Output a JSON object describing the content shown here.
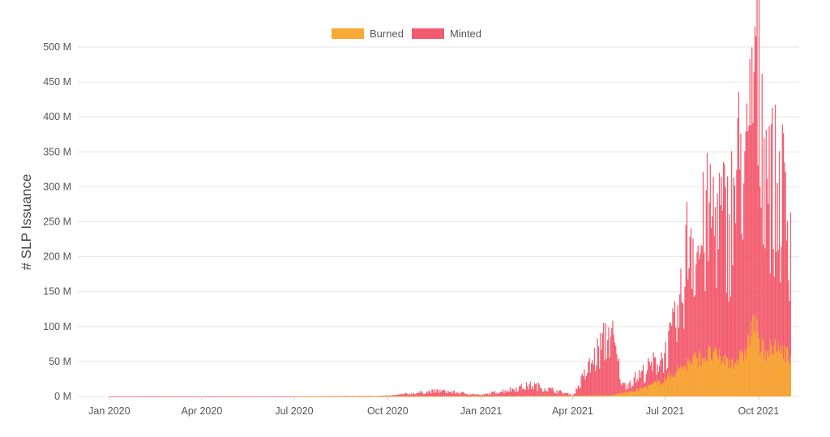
{
  "chart_data": {
    "type": "bar",
    "stacked": true,
    "ylabel": "# SLP Issuance",
    "ylim": [
      0,
      500000000
    ],
    "yticks": [
      {
        "value": 0,
        "label": "0 M"
      },
      {
        "value": 50000000,
        "label": "50 M"
      },
      {
        "value": 100000000,
        "label": "100 M"
      },
      {
        "value": 150000000,
        "label": "150 M"
      },
      {
        "value": 200000000,
        "label": "200 M"
      },
      {
        "value": 250000000,
        "label": "250 M"
      },
      {
        "value": 300000000,
        "label": "300 M"
      },
      {
        "value": 350000000,
        "label": "350 M"
      },
      {
        "value": 400000000,
        "label": "400 M"
      },
      {
        "value": 450000000,
        "label": "450 M"
      },
      {
        "value": 500000000,
        "label": "500 M"
      }
    ],
    "xlim": [
      "2019-12-01",
      "2021-11-10"
    ],
    "xticks": [
      {
        "date": "2020-01-01",
        "label": "Jan 2020"
      },
      {
        "date": "2020-04-01",
        "label": "Apr 2020"
      },
      {
        "date": "2020-07-01",
        "label": "Jul 2020"
      },
      {
        "date": "2020-10-01",
        "label": "Oct 2020"
      },
      {
        "date": "2021-01-01",
        "label": "Jan 2021"
      },
      {
        "date": "2021-04-01",
        "label": "Apr 2021"
      },
      {
        "date": "2021-07-01",
        "label": "Jul 2021"
      },
      {
        "date": "2021-10-01",
        "label": "Oct 2021"
      }
    ],
    "grid": true,
    "legend_position": "top-center",
    "colors": {
      "Burned": "#F7A935",
      "Minted": "#F25B6E"
    },
    "series": [
      {
        "name": "Burned",
        "points": [
          [
            "2020-01-01",
            0
          ],
          [
            "2020-07-01",
            0
          ],
          [
            "2020-10-01",
            300000
          ],
          [
            "2021-01-01",
            500000
          ],
          [
            "2021-04-01",
            1000000
          ],
          [
            "2021-05-10",
            2000000
          ],
          [
            "2021-05-20",
            5000000
          ],
          [
            "2021-06-01",
            8000000
          ],
          [
            "2021-06-15",
            15000000
          ],
          [
            "2021-07-01",
            25000000
          ],
          [
            "2021-07-15",
            40000000
          ],
          [
            "2021-08-01",
            55000000
          ],
          [
            "2021-08-15",
            60000000
          ],
          [
            "2021-09-01",
            50000000
          ],
          [
            "2021-09-15",
            55000000
          ],
          [
            "2021-09-27",
            110000000
          ],
          [
            "2021-10-01",
            70000000
          ],
          [
            "2021-10-15",
            65000000
          ],
          [
            "2021-10-25",
            70000000
          ],
          [
            "2021-11-01",
            50000000
          ]
        ]
      },
      {
        "name": "Minted",
        "points": [
          [
            "2020-01-01",
            0
          ],
          [
            "2020-07-01",
            0
          ],
          [
            "2020-10-01",
            1000000
          ],
          [
            "2020-11-20",
            8000000
          ],
          [
            "2021-01-01",
            2000000
          ],
          [
            "2021-02-20",
            16000000
          ],
          [
            "2021-04-01",
            2000000
          ],
          [
            "2021-05-08",
            92000000
          ],
          [
            "2021-05-20",
            15000000
          ],
          [
            "2021-06-01",
            25000000
          ],
          [
            "2021-06-15",
            40000000
          ],
          [
            "2021-07-01",
            60000000
          ],
          [
            "2021-07-15",
            115000000
          ],
          [
            "2021-07-25",
            246000000
          ],
          [
            "2021-08-01",
            200000000
          ],
          [
            "2021-08-15",
            260000000
          ],
          [
            "2021-09-01",
            240000000
          ],
          [
            "2021-09-15",
            350000000
          ],
          [
            "2021-09-20",
            300000000
          ],
          [
            "2021-09-25",
            450000000
          ],
          [
            "2021-09-28",
            475000000
          ],
          [
            "2021-10-05",
            380000000
          ],
          [
            "2021-10-15",
            290000000
          ],
          [
            "2021-10-25",
            280000000
          ],
          [
            "2021-11-01",
            235000000
          ]
        ]
      }
    ]
  }
}
